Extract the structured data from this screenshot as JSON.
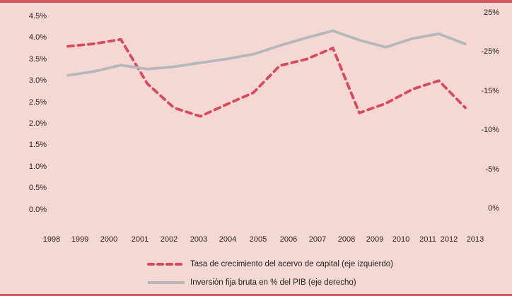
{
  "colors": {
    "background": "#f5d8d4",
    "accent_bar": "#d25660",
    "capital_line": "#d54b5c",
    "investment_line": "#b4b8bc",
    "text": "#231f20"
  },
  "chart_data": {
    "type": "line",
    "title": "",
    "x": [
      1998,
      1999,
      2000,
      2001,
      2002,
      2003,
      2004,
      2005,
      2006,
      2007,
      2008,
      2009,
      2010,
      2011,
      2012,
      2013
    ],
    "x_tick_labels": [
      "1998",
      "1999",
      "2000",
      "2001",
      "2002",
      "2003",
      "2004",
      "2005",
      "2006",
      "2007",
      "2008",
      "2009",
      "2010",
      "2011",
      "2012",
      "2013"
    ],
    "series": [
      {
        "name": "Tasa de crecimiento del acervo de capital (eje izquierdo)",
        "axis": "left",
        "style": "dashed",
        "color": "#d54b5c",
        "values": [
          3.8,
          3.86,
          3.96,
          2.93,
          2.37,
          2.17,
          2.45,
          2.72,
          3.35,
          3.5,
          3.76,
          2.25,
          2.47,
          2.8,
          3.0,
          2.37
        ]
      },
      {
        "name": "Inversión fija bruta en % del PIB (eje derecho)",
        "axis": "right",
        "style": "solid",
        "color": "#b4b8bc",
        "values": [
          17.0,
          17.5,
          18.3,
          17.8,
          18.1,
          18.6,
          19.1,
          19.7,
          20.8,
          21.8,
          22.7,
          21.5,
          20.6,
          21.7,
          22.3,
          21.0
        ]
      }
    ],
    "left_axis": {
      "tick_labels": [
        "4.5%",
        "4.0%",
        "3.5%",
        "3.0%",
        "2.5%",
        "2.0%",
        "1.5%",
        "1.0%",
        "0.5%",
        "0.0%"
      ],
      "range": [
        0,
        4.5
      ]
    },
    "right_axis": {
      "tick_labels": [
        "25%",
        "-25%",
        "-15%",
        "-10%",
        "-5%",
        "0%"
      ],
      "range": [
        0,
        25
      ]
    },
    "grid": false,
    "legend_position": "bottom"
  }
}
